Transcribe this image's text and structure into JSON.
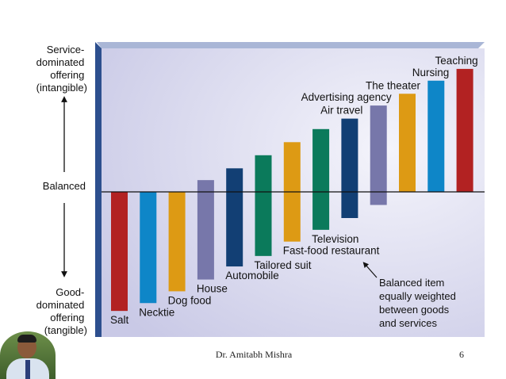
{
  "chart_data": {
    "type": "bar",
    "title": "",
    "ylabel": "",
    "xlabel": "",
    "ylim": [
      -10,
      10
    ],
    "y_labels": {
      "top": "Service-\ndominated\noffering\n(intangible)",
      "middle": "Balanced",
      "bottom": "Good-\ndominated\noffering\n(tangible)"
    },
    "annotation": "Balanced item\nequally weighted\nbetween goods\nand services",
    "categories": [
      "Salt",
      "Necktie",
      "Dog food",
      "House",
      "Automobile",
      "Tailored suit",
      "Fast-food restaurant",
      "Television",
      "Air travel",
      "Advertising agency",
      "The theater",
      "Nursing",
      "Teaching"
    ],
    "bars": [
      {
        "label": "Salt",
        "low": -9.1,
        "high": 0,
        "color": "#b22222"
      },
      {
        "label": "Necktie",
        "low": -8.5,
        "high": 0,
        "color": "#0e86c8"
      },
      {
        "label": "Dog food",
        "low": -7.6,
        "high": 0,
        "color": "#dd9a14"
      },
      {
        "label": "House",
        "low": -6.7,
        "high": 0.9,
        "color": "#7777aa"
      },
      {
        "label": "Automobile",
        "low": -5.7,
        "high": 1.8,
        "color": "#123f74"
      },
      {
        "label": "Tailored suit",
        "low": -4.9,
        "high": 2.8,
        "color": "#0b7a5b"
      },
      {
        "label": "Fast-food restaurant",
        "low": -3.8,
        "high": 3.8,
        "color": "#dd9a14"
      },
      {
        "label": "Television",
        "low": -2.9,
        "high": 4.8,
        "color": "#0b7a5b"
      },
      {
        "label": "Air travel",
        "low": -2.0,
        "high": 5.6,
        "color": "#123f74"
      },
      {
        "label": "Advertising agency",
        "low": -1.0,
        "high": 6.6,
        "color": "#7777aa"
      },
      {
        "label": "The theater",
        "low": 0,
        "high": 7.5,
        "color": "#dd9a14"
      },
      {
        "label": "Nursing",
        "low": 0,
        "high": 8.5,
        "color": "#0e86c8"
      },
      {
        "label": "Teaching",
        "low": 0,
        "high": 9.4,
        "color": "#b22222"
      }
    ]
  },
  "footer": {
    "author": "Dr. Amitabh  Mishra",
    "page": "6"
  }
}
